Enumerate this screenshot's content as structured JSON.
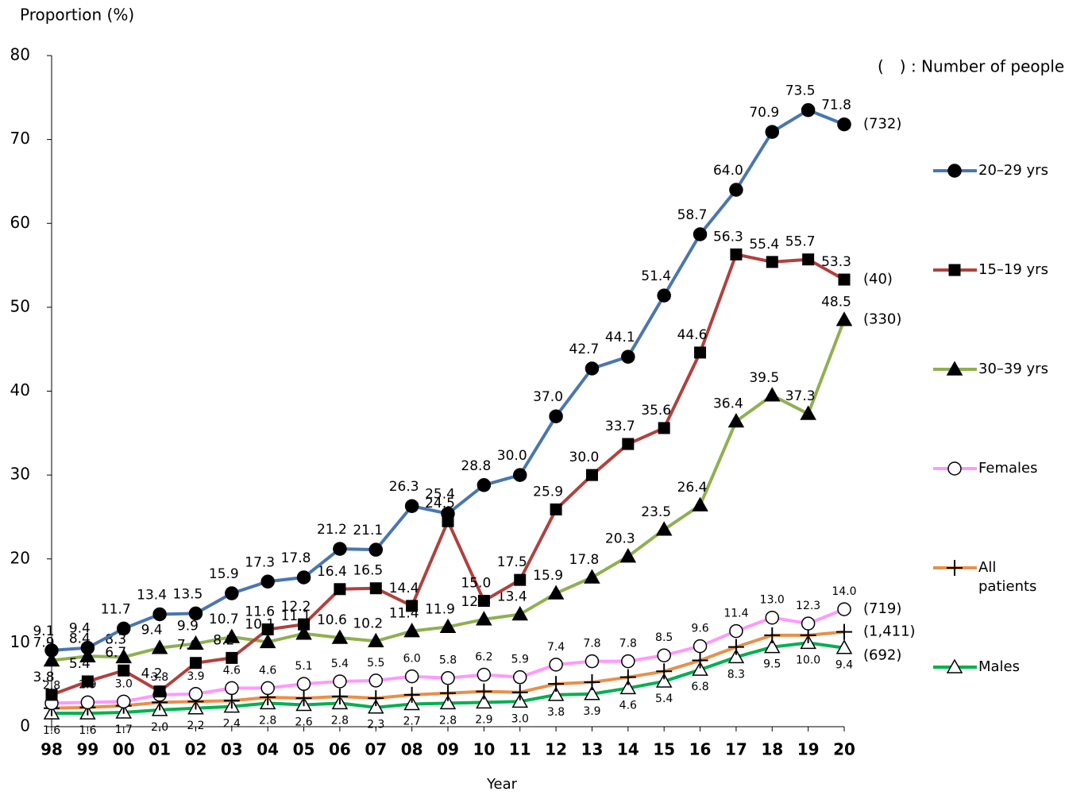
{
  "chart_data": {
    "type": "line",
    "y_label": "Proportion (%)",
    "x_label": "Year",
    "note": "(　) : Number of people",
    "categories": [
      "98",
      "99",
      "00",
      "01",
      "02",
      "03",
      "04",
      "05",
      "06",
      "07",
      "08",
      "09",
      "10",
      "11",
      "12",
      "13",
      "14",
      "15",
      "16",
      "17",
      "18",
      "19",
      "20"
    ],
    "ylim": [
      0,
      80
    ],
    "yticks": [
      0,
      10,
      20,
      30,
      40,
      50,
      60,
      70,
      80
    ],
    "series": [
      {
        "name": "20–29 yrs",
        "color": "#4a76b0",
        "marker": "circle",
        "count": "(732)",
        "values": [
          9.1,
          9.4,
          11.7,
          13.4,
          13.5,
          15.9,
          17.3,
          17.8,
          21.2,
          21.1,
          26.3,
          25.4,
          28.8,
          30.0,
          37.0,
          42.7,
          44.1,
          51.4,
          58.7,
          64.0,
          70.9,
          73.5,
          71.8
        ],
        "value_labels": [
          "9.1",
          "9.4",
          "11.7",
          "13.4",
          "13.5",
          "15.9",
          "17.3",
          "17.8",
          "21.2",
          "21.1",
          "26.3",
          "25.4",
          "28.8",
          "30.0",
          "37.0",
          "42.7",
          "44.1",
          "51.4",
          "58.7",
          "64.0",
          "70.9",
          "73.5",
          "71.8"
        ]
      },
      {
        "name": "15–19 yrs",
        "color": "#b0413e",
        "marker": "square",
        "count": "(40)",
        "values": [
          3.8,
          5.4,
          6.7,
          4.2,
          7.6,
          8.2,
          11.6,
          12.2,
          16.4,
          16.5,
          14.4,
          24.5,
          15.0,
          17.5,
          25.9,
          30.0,
          33.7,
          35.6,
          44.6,
          56.3,
          55.4,
          55.7,
          53.3
        ],
        "value_labels": [
          "3.8",
          "5.4",
          "6.7",
          "4.2",
          "7.6",
          "8.2",
          "11.6",
          "12.2",
          "16.4",
          "16.5",
          "14.4",
          "24.5",
          "15.0",
          "17.5",
          "25.9",
          "30.0",
          "33.7",
          "35.6",
          "44.6",
          "56.3",
          "55.4",
          "55.7",
          "53.3"
        ]
      },
      {
        "name": "30–39 yrs",
        "color": "#8fb050",
        "marker": "triangle",
        "count": "(330)",
        "values": [
          7.9,
          8.4,
          8.3,
          9.4,
          9.9,
          10.7,
          10.1,
          11.1,
          10.6,
          10.2,
          11.4,
          11.9,
          12.8,
          13.4,
          15.9,
          17.8,
          20.3,
          23.5,
          26.4,
          36.4,
          39.5,
          37.3,
          48.5
        ],
        "value_labels": [
          "7.9",
          "8.4",
          "8.3",
          "9.4",
          "9.9",
          "10.7",
          "10.1",
          "11.1",
          "10.6",
          "10.2",
          "11.4",
          "11.9",
          "12.8",
          "13.4",
          "15.9",
          "17.8",
          "20.3",
          "23.5",
          "26.4",
          "36.4",
          "39.5",
          "37.3",
          "48.5"
        ]
      },
      {
        "name": "Females",
        "color": "#ff99ff",
        "marker": "open-circle",
        "count": "(719)",
        "values": [
          2.8,
          2.9,
          3.0,
          3.8,
          3.9,
          4.6,
          4.6,
          5.1,
          5.4,
          5.5,
          6.0,
          5.8,
          6.2,
          5.9,
          7.4,
          7.8,
          7.8,
          8.5,
          9.6,
          11.4,
          13.0,
          12.3,
          14.0
        ],
        "value_labels": [
          "2.8",
          "2.9",
          "3.0",
          "3.8",
          "3.9",
          "4.6",
          "4.6",
          "5.1",
          "5.4",
          "5.5",
          "6.0",
          "5.8",
          "6.2",
          "5.9",
          "7.4",
          "7.8",
          "7.8",
          "8.5",
          "9.6",
          "11.4",
          "13.0",
          "12.3",
          "14.0"
        ]
      },
      {
        "name": "All patients",
        "color": "#e8904a",
        "marker": "plus",
        "count": "(1,411)",
        "values": [
          2.2,
          2.3,
          2.5,
          2.9,
          3.0,
          3.1,
          3.5,
          3.4,
          3.6,
          3.4,
          3.8,
          4.0,
          4.2,
          4.1,
          5.1,
          5.3,
          5.9,
          6.6,
          7.9,
          9.5,
          10.9,
          10.9,
          11.3
        ]
      },
      {
        "name": "Males",
        "color": "#00b050",
        "marker": "open-triangle",
        "count": "(692)",
        "values": [
          1.6,
          1.6,
          1.7,
          2.0,
          2.2,
          2.4,
          2.8,
          2.6,
          2.8,
          2.3,
          2.7,
          2.8,
          2.9,
          3.0,
          3.8,
          3.9,
          4.6,
          5.4,
          6.8,
          8.3,
          9.5,
          10.0,
          9.4
        ],
        "value_labels": [
          "1.6",
          "1.6",
          "1.7",
          "2.0",
          "2.2",
          "2.4",
          "2.8",
          "2.6",
          "2.8",
          "2.3",
          "2.7",
          "2.8",
          "2.9",
          "3.0",
          "3.8",
          "3.9",
          "4.6",
          "5.4",
          "6.8",
          "8.3",
          "9.5",
          "10.0",
          "9.4"
        ]
      }
    ]
  }
}
